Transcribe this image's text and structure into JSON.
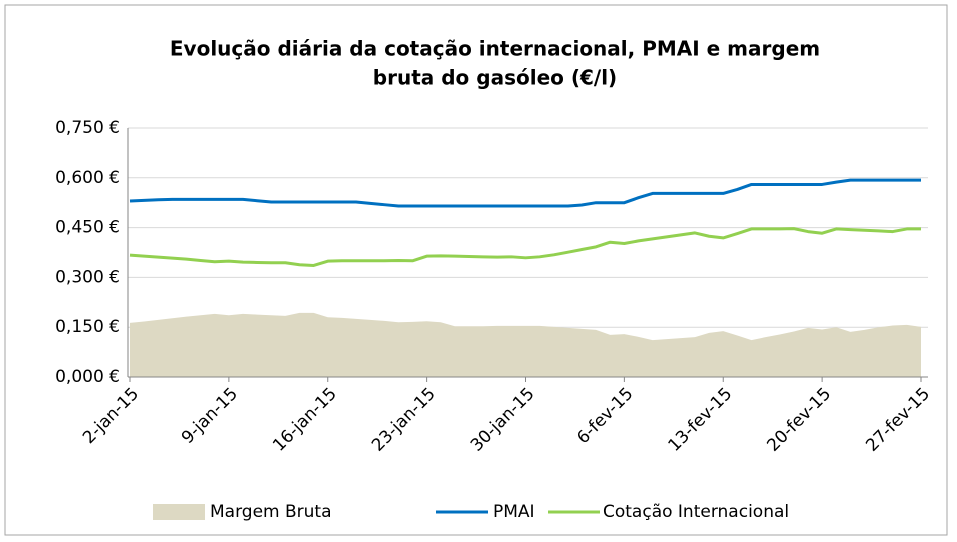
{
  "chart_data": {
    "type": "line",
    "title": [
      "Evolução diária da cotação internacional, PMAI e margem",
      "bruta do gasóleo (€/l)"
    ],
    "categories": [
      "2-jan-15",
      null,
      null,
      null,
      null,
      null,
      null,
      "9-jan-15",
      null,
      null,
      null,
      null,
      null,
      null,
      "16-jan-15",
      null,
      null,
      null,
      null,
      null,
      null,
      "23-jan-15",
      null,
      null,
      null,
      null,
      null,
      null,
      "30-jan-15",
      null,
      null,
      null,
      null,
      null,
      null,
      "6-fev-15",
      null,
      null,
      null,
      null,
      null,
      null,
      "13-fev-15",
      null,
      null,
      null,
      null,
      null,
      null,
      "20-fev-15",
      null,
      null,
      null,
      null,
      null,
      null,
      "27-fev-15"
    ],
    "series": [
      {
        "name": "Margem Bruta",
        "kind": "area",
        "color": "#ddd9c3",
        "values": [
          0.163,
          0.167,
          0.172,
          0.177,
          0.182,
          0.186,
          0.19,
          0.186,
          0.19,
          0.188,
          0.186,
          0.184,
          0.193,
          0.193,
          0.18,
          0.178,
          0.175,
          0.172,
          0.169,
          0.165,
          0.166,
          0.168,
          0.165,
          0.153,
          0.153,
          0.153,
          0.154,
          0.154,
          0.154,
          0.154,
          0.151,
          0.148,
          0.145,
          0.142,
          0.127,
          0.129,
          0.121,
          0.111,
          0.114,
          0.117,
          0.12,
          0.133,
          0.138,
          0.125,
          0.111,
          0.12,
          0.128,
          0.137,
          0.148,
          0.143,
          0.15,
          0.136,
          0.142,
          0.15,
          0.155,
          0.157,
          0.151
        ]
      },
      {
        "name": "PMAI",
        "kind": "line",
        "color": "#0070c0",
        "values": [
          0.53,
          0.532,
          0.534,
          0.535,
          0.535,
          0.535,
          0.535,
          0.535,
          0.535,
          0.531,
          0.527,
          0.527,
          0.527,
          0.527,
          0.527,
          0.527,
          0.527,
          0.523,
          0.519,
          0.515,
          0.515,
          0.515,
          0.515,
          0.515,
          0.515,
          0.515,
          0.515,
          0.515,
          0.515,
          0.515,
          0.515,
          0.515,
          0.518,
          0.525,
          0.525,
          0.525,
          0.54,
          0.553,
          0.553,
          0.553,
          0.553,
          0.553,
          0.553,
          0.565,
          0.58,
          0.58,
          0.58,
          0.58,
          0.58,
          0.58,
          0.587,
          0.593,
          0.593,
          0.593,
          0.593,
          0.593,
          0.593
        ]
      },
      {
        "name": "Cotação Internacional",
        "kind": "line",
        "color": "#92d050",
        "values": [
          0.367,
          0.364,
          0.361,
          0.358,
          0.355,
          0.351,
          0.347,
          0.349,
          0.346,
          0.345,
          0.344,
          0.344,
          0.338,
          0.336,
          0.349,
          0.35,
          0.35,
          0.35,
          0.35,
          0.351,
          0.35,
          0.364,
          0.365,
          0.364,
          0.363,
          0.362,
          0.361,
          0.362,
          0.359,
          0.362,
          0.368,
          0.376,
          0.384,
          0.392,
          0.406,
          0.402,
          0.41,
          0.416,
          0.422,
          0.428,
          0.434,
          0.424,
          0.419,
          0.432,
          0.446,
          0.446,
          0.446,
          0.447,
          0.438,
          0.433,
          0.446,
          0.444,
          0.442,
          0.44,
          0.438,
          0.446,
          0.446
        ]
      }
    ],
    "ylim": [
      0,
      0.75
    ],
    "yticks": [
      {
        "value": 0,
        "label": "0,000 €"
      },
      {
        "value": 0.15,
        "label": "0,150 €"
      },
      {
        "value": 0.3,
        "label": "0,300 €"
      },
      {
        "value": 0.45,
        "label": "0,450 €"
      },
      {
        "value": 0.6,
        "label": "0,600 €"
      },
      {
        "value": 0.75,
        "label": "0,750 €"
      }
    ],
    "grid": true,
    "legend": "bottom"
  }
}
